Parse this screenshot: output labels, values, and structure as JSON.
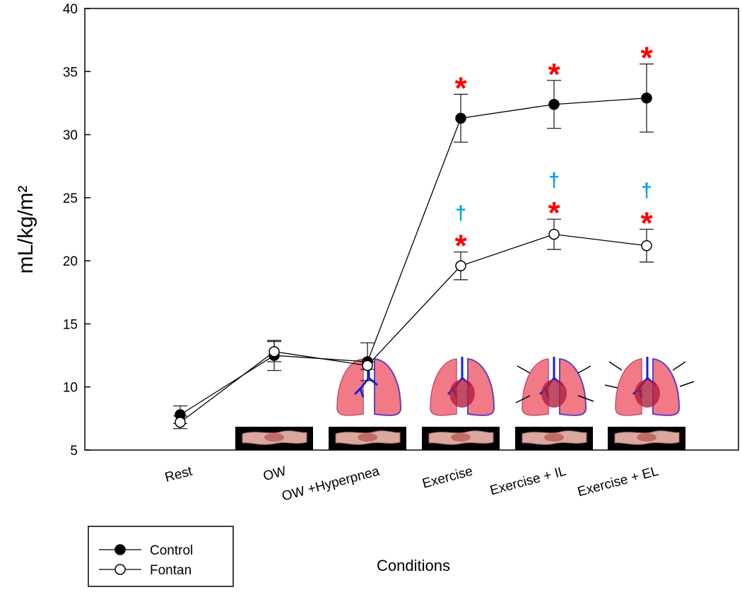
{
  "chart_data": {
    "type": "line",
    "y_label": "mL/kg/m²",
    "x_label": "Conditions",
    "categories": [
      "Rest",
      "OW",
      "OW +Hyperpnea",
      "Exercise",
      "Exercise + IL",
      "Exercise + EL"
    ],
    "series": [
      {
        "name": "Control",
        "color": "#000000",
        "marker_fill": "#000000",
        "values": [
          7.8,
          12.5,
          12.0,
          31.3,
          32.4,
          32.9
        ],
        "errors": [
          0.7,
          1.2,
          1.5,
          1.9,
          1.9,
          2.7
        ]
      },
      {
        "name": "Fontan",
        "color": "#000000",
        "marker_fill": "#ffffff",
        "values": [
          7.2,
          12.8,
          11.7,
          19.6,
          22.1,
          21.2
        ],
        "errors": [
          0.5,
          0.8,
          0.3,
          1.1,
          1.2,
          1.3
        ]
      }
    ],
    "annotations": [
      {
        "text": "*",
        "category": "Exercise",
        "series": "Control",
        "color": "#ff0000"
      },
      {
        "text": "*",
        "category": "Exercise + IL",
        "series": "Control",
        "color": "#ff0000"
      },
      {
        "text": "*",
        "category": "Exercise + EL",
        "series": "Control",
        "color": "#ff0000"
      },
      {
        "text": "*",
        "category": "Exercise",
        "series": "Fontan",
        "color": "#ff0000"
      },
      {
        "text": "†",
        "category": "Exercise",
        "series": "Fontan",
        "color": "#00a0e8"
      },
      {
        "text": "*",
        "category": "Exercise + IL",
        "series": "Fontan",
        "color": "#ff0000"
      },
      {
        "text": "†",
        "category": "Exercise + IL",
        "series": "Fontan",
        "color": "#00a0e8"
      },
      {
        "text": "*",
        "category": "Exercise + EL",
        "series": "Fontan",
        "color": "#ff0000"
      },
      {
        "text": "†",
        "category": "Exercise + EL",
        "series": "Fontan",
        "color": "#00a0e8"
      }
    ],
    "ylim": [
      5,
      40
    ],
    "yticks": [
      5,
      10,
      15,
      20,
      25,
      30,
      35,
      40
    ],
    "legend": "bottom-left"
  }
}
